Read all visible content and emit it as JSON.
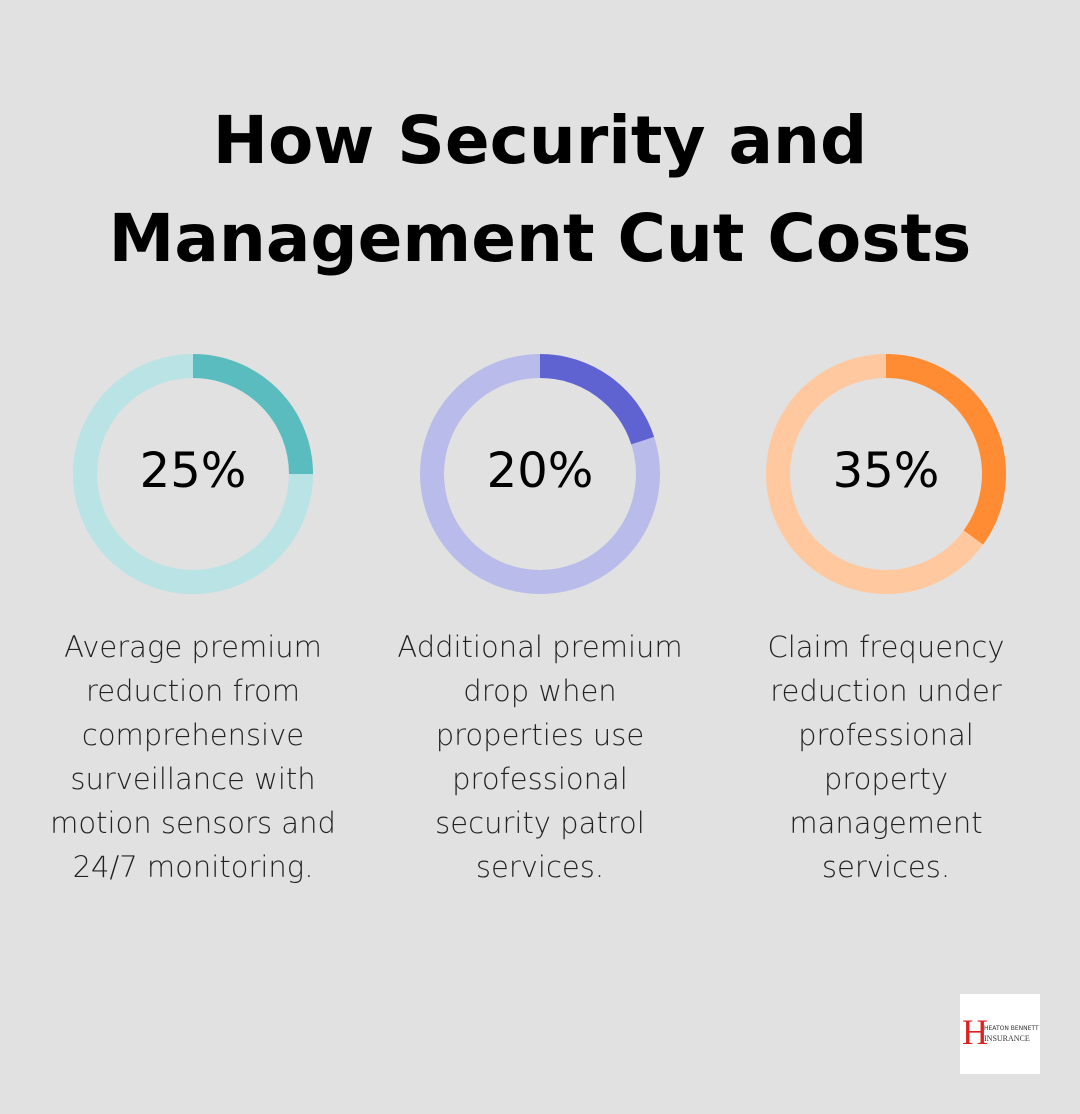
{
  "title": "How Security and Management Cut Costs",
  "chart_data": [
    {
      "type": "donut",
      "values": [
        25
      ],
      "value_labels": [
        "25%"
      ],
      "color": "#5bbcbf",
      "track_color": "#b9e3e4",
      "caption": "Average premium reduction from comprehensive surveillance with motion sensors and 24/7 monitoring."
    },
    {
      "type": "donut",
      "values": [
        20
      ],
      "value_labels": [
        "20%"
      ],
      "color": "#5f63d1",
      "track_color": "#b9bbea",
      "caption": "Additional premium drop when properties use professional security patrol services."
    },
    {
      "type": "donut",
      "values": [
        35
      ],
      "value_labels": [
        "35%"
      ],
      "color": "#ff8c33",
      "track_color": "#ffc89e",
      "caption": "Claim frequency reduction under professional property management services."
    }
  ],
  "logo": {
    "initial": "H",
    "line1": "HEATON BENNETT",
    "line2": "INSURANCE"
  }
}
